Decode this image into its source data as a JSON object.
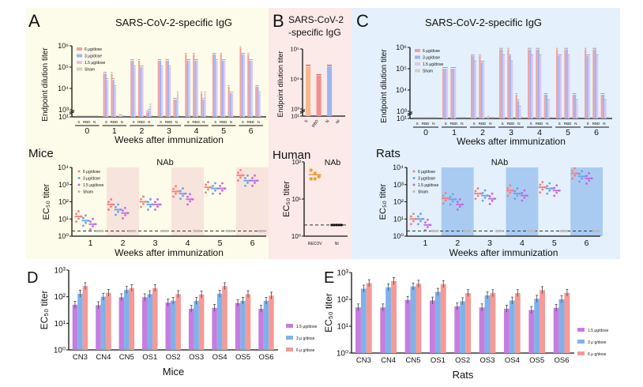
{
  "panels": {
    "A": {
      "letter": "A",
      "title": "SARS-CoV-2-specific IgG",
      "species": "Mice",
      "bg": "#fdfbe9",
      "species_color": "#b8960c",
      "band": "#f7e4dc"
    },
    "B": {
      "letter": "B",
      "title_line1": "SARS-CoV-2",
      "title_line2": "-specific IgG",
      "species": "Human",
      "bg": "#fbeae8",
      "species_color": "#8b1a2b"
    },
    "C": {
      "letter": "C",
      "title": "SARS-CoV-2-specific IgG",
      "species": "Rats",
      "bg": "#e4f0fb",
      "species_color": "#1f4e9a",
      "band": "#a9cbf2"
    },
    "D": {
      "letter": "D"
    },
    "E": {
      "letter": "E"
    }
  },
  "chart_data": [
    {
      "id": "A-IgG",
      "type": "bar",
      "ylabel": "Endpoint dilution titer",
      "xlabel": "Weeks after immunization",
      "categories": [
        "0",
        "1",
        "2",
        "3",
        "4",
        "5",
        "6"
      ],
      "subcategories": [
        "S",
        "RBD",
        "N"
      ],
      "yticks": [
        {
          "v": 10,
          "label": "10¹"
        },
        {
          "v": 1000,
          "label": "10³"
        },
        {
          "v": 10000,
          "label": "10⁴"
        },
        {
          "v": 100000,
          "label": "10⁵"
        },
        {
          "v": 1000000,
          "label": "10⁶"
        }
      ],
      "ylim": [
        10,
        1000000
      ],
      "yscale": "log (broken axis)",
      "series": [
        {
          "name": "6 μg/dose",
          "color": "#f4a1a1"
        },
        {
          "name": "3 μg/dose",
          "color": "#9db5f0"
        },
        {
          "name": "1.5 μg/dose",
          "color": "#dcc6f2"
        },
        {
          "name": "Sham",
          "color": "#cfcfcf"
        }
      ],
      "values": [
        [
          [
            10,
            10,
            10,
            10
          ],
          [
            10,
            10,
            10,
            10
          ],
          [
            10,
            10,
            10,
            10
          ]
        ],
        [
          [
            50000,
            50000,
            25000,
            10
          ],
          [
            50000,
            25000,
            12000,
            10
          ],
          [
            20,
            15,
            10,
            10
          ]
        ],
        [
          [
            200000,
            200000,
            100000,
            10
          ],
          [
            200000,
            100000,
            100000,
            10
          ],
          [
            200,
            600,
            1600,
            10
          ]
        ],
        [
          [
            200000,
            200000,
            100000,
            10
          ],
          [
            200000,
            200000,
            100000,
            10
          ],
          [
            3000,
            3000,
            6000,
            10
          ]
        ],
        [
          [
            400000,
            200000,
            200000,
            10
          ],
          [
            400000,
            200000,
            200000,
            10
          ],
          [
            6000,
            3000,
            6000,
            10
          ]
        ],
        [
          [
            400000,
            400000,
            200000,
            10
          ],
          [
            400000,
            200000,
            200000,
            10
          ],
          [
            12000,
            6000,
            6000,
            10
          ]
        ],
        [
          [
            800000,
            400000,
            400000,
            10
          ],
          [
            400000,
            200000,
            200000,
            10
          ],
          [
            12000,
            12000,
            6000,
            10
          ]
        ]
      ]
    },
    {
      "id": "A-NAb",
      "type": "scatter",
      "title": "NAb",
      "ylabel": "EC₅₀ titer",
      "xlabel": "Weeks after immunization",
      "categories": [
        "1",
        "2",
        "3",
        "4",
        "5",
        "6"
      ],
      "yticks": [
        {
          "v": 1,
          "label": "10⁰"
        },
        {
          "v": 10,
          "label": "10¹"
        },
        {
          "v": 100,
          "label": "10²"
        },
        {
          "v": 1000,
          "label": "10³"
        },
        {
          "v": 10000,
          "label": "10⁴"
        }
      ],
      "ylim": [
        1,
        10000
      ],
      "yscale": "log",
      "detection_limit": 2,
      "series": [
        {
          "name": "6 μg/dose",
          "color": "#f28080",
          "medians": [
            14,
            70,
            100,
            400,
            700,
            3500
          ]
        },
        {
          "name": "3 μg/dose",
          "color": "#6fa3e8",
          "medians": [
            8,
            35,
            70,
            300,
            600,
            1700
          ]
        },
        {
          "name": "1.5 μg/dose",
          "color": "#c56ae0",
          "medians": [
            5,
            22,
            70,
            140,
            600,
            1700
          ]
        },
        {
          "name": "Sham",
          "color": "#b8b8b8",
          "medians": [
            2,
            2,
            2,
            2,
            2,
            2
          ]
        }
      ]
    },
    {
      "id": "B-IgG",
      "type": "bar",
      "ylabel": "Endpoint dilution titer",
      "categories": [
        "S",
        "RBD",
        "N",
        "NI"
      ],
      "colors": [
        "#f7b88e",
        "#f08f8f",
        "#9db5f0",
        "#cfcfcf"
      ],
      "values": [
        27000,
        13000,
        27000,
        10
      ],
      "yticks": [
        {
          "v": 10,
          "label": "10¹"
        },
        {
          "v": 1000,
          "label": "10³"
        },
        {
          "v": 10000,
          "label": "10⁴"
        },
        {
          "v": 100000,
          "label": "10⁵"
        }
      ],
      "ylim": [
        10,
        100000
      ],
      "yscale": "log (broken axis)"
    },
    {
      "id": "B-NAb",
      "type": "scatter",
      "title": "NAb",
      "ylabel": "EC₅₀ titer",
      "categories": [
        "RECOV",
        "NI"
      ],
      "points": [
        [
          60,
          50,
          40,
          35,
          35
        ],
        [
          2,
          2,
          2,
          2,
          2
        ]
      ],
      "medians": [
        45,
        2
      ],
      "colors": [
        "#f0a040",
        "#111111"
      ],
      "yticks": [
        {
          "v": 1,
          "label": "10⁰"
        },
        {
          "v": 10,
          "label": "10¹"
        },
        {
          "v": 100,
          "label": "10²"
        }
      ],
      "ylim": [
        1,
        100
      ],
      "yscale": "log",
      "detection_limit": 2
    },
    {
      "id": "C-IgG",
      "type": "bar",
      "ylabel": "Endpoint dilution titer",
      "xlabel": "Weeks after immunization",
      "categories": [
        "0",
        "1",
        "2",
        "3",
        "4",
        "5",
        "6"
      ],
      "subcategories": [
        "S",
        "RBD",
        "N"
      ],
      "yticks": [
        {
          "v": 10,
          "label": "10¹"
        },
        {
          "v": 1000,
          "label": "10³"
        },
        {
          "v": 10000,
          "label": "10⁴"
        },
        {
          "v": 100000,
          "label": "10⁵"
        },
        {
          "v": 1000000,
          "label": "10⁶"
        }
      ],
      "ylim": [
        10,
        1000000
      ],
      "yscale": "log (broken axis)",
      "series": [
        {
          "name": "6 μg/dose",
          "color": "#f4a1a1"
        },
        {
          "name": "3 μg/dose",
          "color": "#9db5f0"
        },
        {
          "name": "1.5 μg/dose",
          "color": "#dcc6f2"
        },
        {
          "name": "Sham",
          "color": "#cfcfcf"
        }
      ],
      "values": [
        [
          [
            10,
            10,
            10,
            10
          ],
          [
            10,
            10,
            10,
            10
          ],
          [
            10,
            10,
            10,
            10
          ]
        ],
        [
          [
            100000,
            100000,
            100000,
            10
          ],
          [
            100000,
            100000,
            100000,
            10
          ],
          [
            10,
            10,
            10,
            10
          ]
        ],
        [
          [
            400000,
            400000,
            200000,
            10
          ],
          [
            400000,
            200000,
            200000,
            10
          ],
          [
            20,
            10,
            10,
            10
          ]
        ],
        [
          [
            800000,
            800000,
            400000,
            10
          ],
          [
            800000,
            400000,
            200000,
            10
          ],
          [
            6000,
            3000,
            1500,
            10
          ]
        ],
        [
          [
            800000,
            800000,
            400000,
            10
          ],
          [
            800000,
            800000,
            400000,
            10
          ],
          [
            6000,
            6000,
            3000,
            10
          ]
        ],
        [
          [
            800000,
            400000,
            400000,
            10
          ],
          [
            800000,
            800000,
            400000,
            10
          ],
          [
            6000,
            6000,
            3000,
            10
          ]
        ],
        [
          [
            800000,
            400000,
            400000,
            10
          ],
          [
            800000,
            800000,
            400000,
            10
          ],
          [
            6000,
            6000,
            3000,
            10
          ]
        ]
      ]
    },
    {
      "id": "C-NAb",
      "type": "scatter",
      "title": "NAb",
      "ylabel": "EC₅₀ titer",
      "xlabel": "Weeks after immunization",
      "categories": [
        "1",
        "2",
        "3",
        "4",
        "5",
        "6"
      ],
      "yticks": [
        {
          "v": 1,
          "label": "10⁰"
        },
        {
          "v": 10,
          "label": "10¹"
        },
        {
          "v": 100,
          "label": "10²"
        },
        {
          "v": 1000,
          "label": "10³"
        },
        {
          "v": 10000,
          "label": "10⁴"
        }
      ],
      "ylim": [
        1,
        10000
      ],
      "yscale": "log",
      "detection_limit": 2,
      "series": [
        {
          "name": "6 μg/dose",
          "color": "#f28080",
          "medians": [
            10,
            160,
            300,
            450,
            700,
            4500
          ]
        },
        {
          "name": "3 μg/dose",
          "color": "#6fa3e8",
          "medians": [
            10,
            140,
            230,
            300,
            600,
            3000
          ]
        },
        {
          "name": "1.5 μg/dose",
          "color": "#c56ae0",
          "medians": [
            4.5,
            70,
            150,
            230,
            450,
            2300
          ]
        },
        {
          "name": "Sham",
          "color": "#b8b8b8",
          "medians": [
            2,
            2,
            2,
            2,
            2,
            2
          ]
        }
      ]
    },
    {
      "id": "D",
      "type": "bar",
      "ylabel": "EC₅₀ titer",
      "xlabel": "Mice",
      "categories": [
        "CN3",
        "CN4",
        "CN5",
        "OS1",
        "OS2",
        "OS3",
        "OS4",
        "OS5",
        "OS6"
      ],
      "yticks": [
        {
          "v": 1,
          "label": "10⁰"
        },
        {
          "v": 10,
          "label": "10¹"
        },
        {
          "v": 100,
          "label": "10²"
        },
        {
          "v": 1000,
          "label": "10³"
        }
      ],
      "ylim": [
        1,
        1000
      ],
      "yscale": "log",
      "legend": "right",
      "series": [
        {
          "name": "1.5  μg/dose",
          "color": "#c77de0",
          "values": [
            50,
            48,
            95,
            95,
            60,
            35,
            38,
            58,
            35
          ]
        },
        {
          "name": "3 μ g/dose",
          "color": "#7fb2ea",
          "values": [
            130,
            100,
            180,
            125,
            70,
            70,
            130,
            70,
            70
          ]
        },
        {
          "name": "6 μ g/dose",
          "color": "#f59a96",
          "values": [
            250,
            140,
            210,
            210,
            125,
            120,
            250,
            125,
            110
          ]
        }
      ]
    },
    {
      "id": "E",
      "type": "bar",
      "ylabel": "EC₅₀ titer",
      "xlabel": "Rats",
      "categories": [
        "CN3",
        "CN4",
        "CN5",
        "OS1",
        "OS2",
        "OS3",
        "OS4",
        "OS5",
        "OS6"
      ],
      "yticks": [
        {
          "v": 1,
          "label": "10⁰"
        },
        {
          "v": 10,
          "label": "10¹"
        },
        {
          "v": 100,
          "label": "10²"
        },
        {
          "v": 1000,
          "label": "10³"
        }
      ],
      "ylim": [
        1,
        1000
      ],
      "yscale": "log",
      "legend": "right",
      "series": [
        {
          "name": "1.5  μg/dose",
          "color": "#c77de0",
          "values": [
            50,
            50,
            95,
            90,
            55,
            50,
            45,
            40,
            48
          ]
        },
        {
          "name": "3 μ g/dose",
          "color": "#7fb2ea",
          "values": [
            250,
            280,
            300,
            190,
            85,
            140,
            90,
            105,
            100
          ]
        },
        {
          "name": "6 μ g/dose",
          "color": "#f59a96",
          "values": [
            400,
            480,
            380,
            370,
            170,
            170,
            170,
            220,
            175
          ]
        }
      ]
    }
  ]
}
